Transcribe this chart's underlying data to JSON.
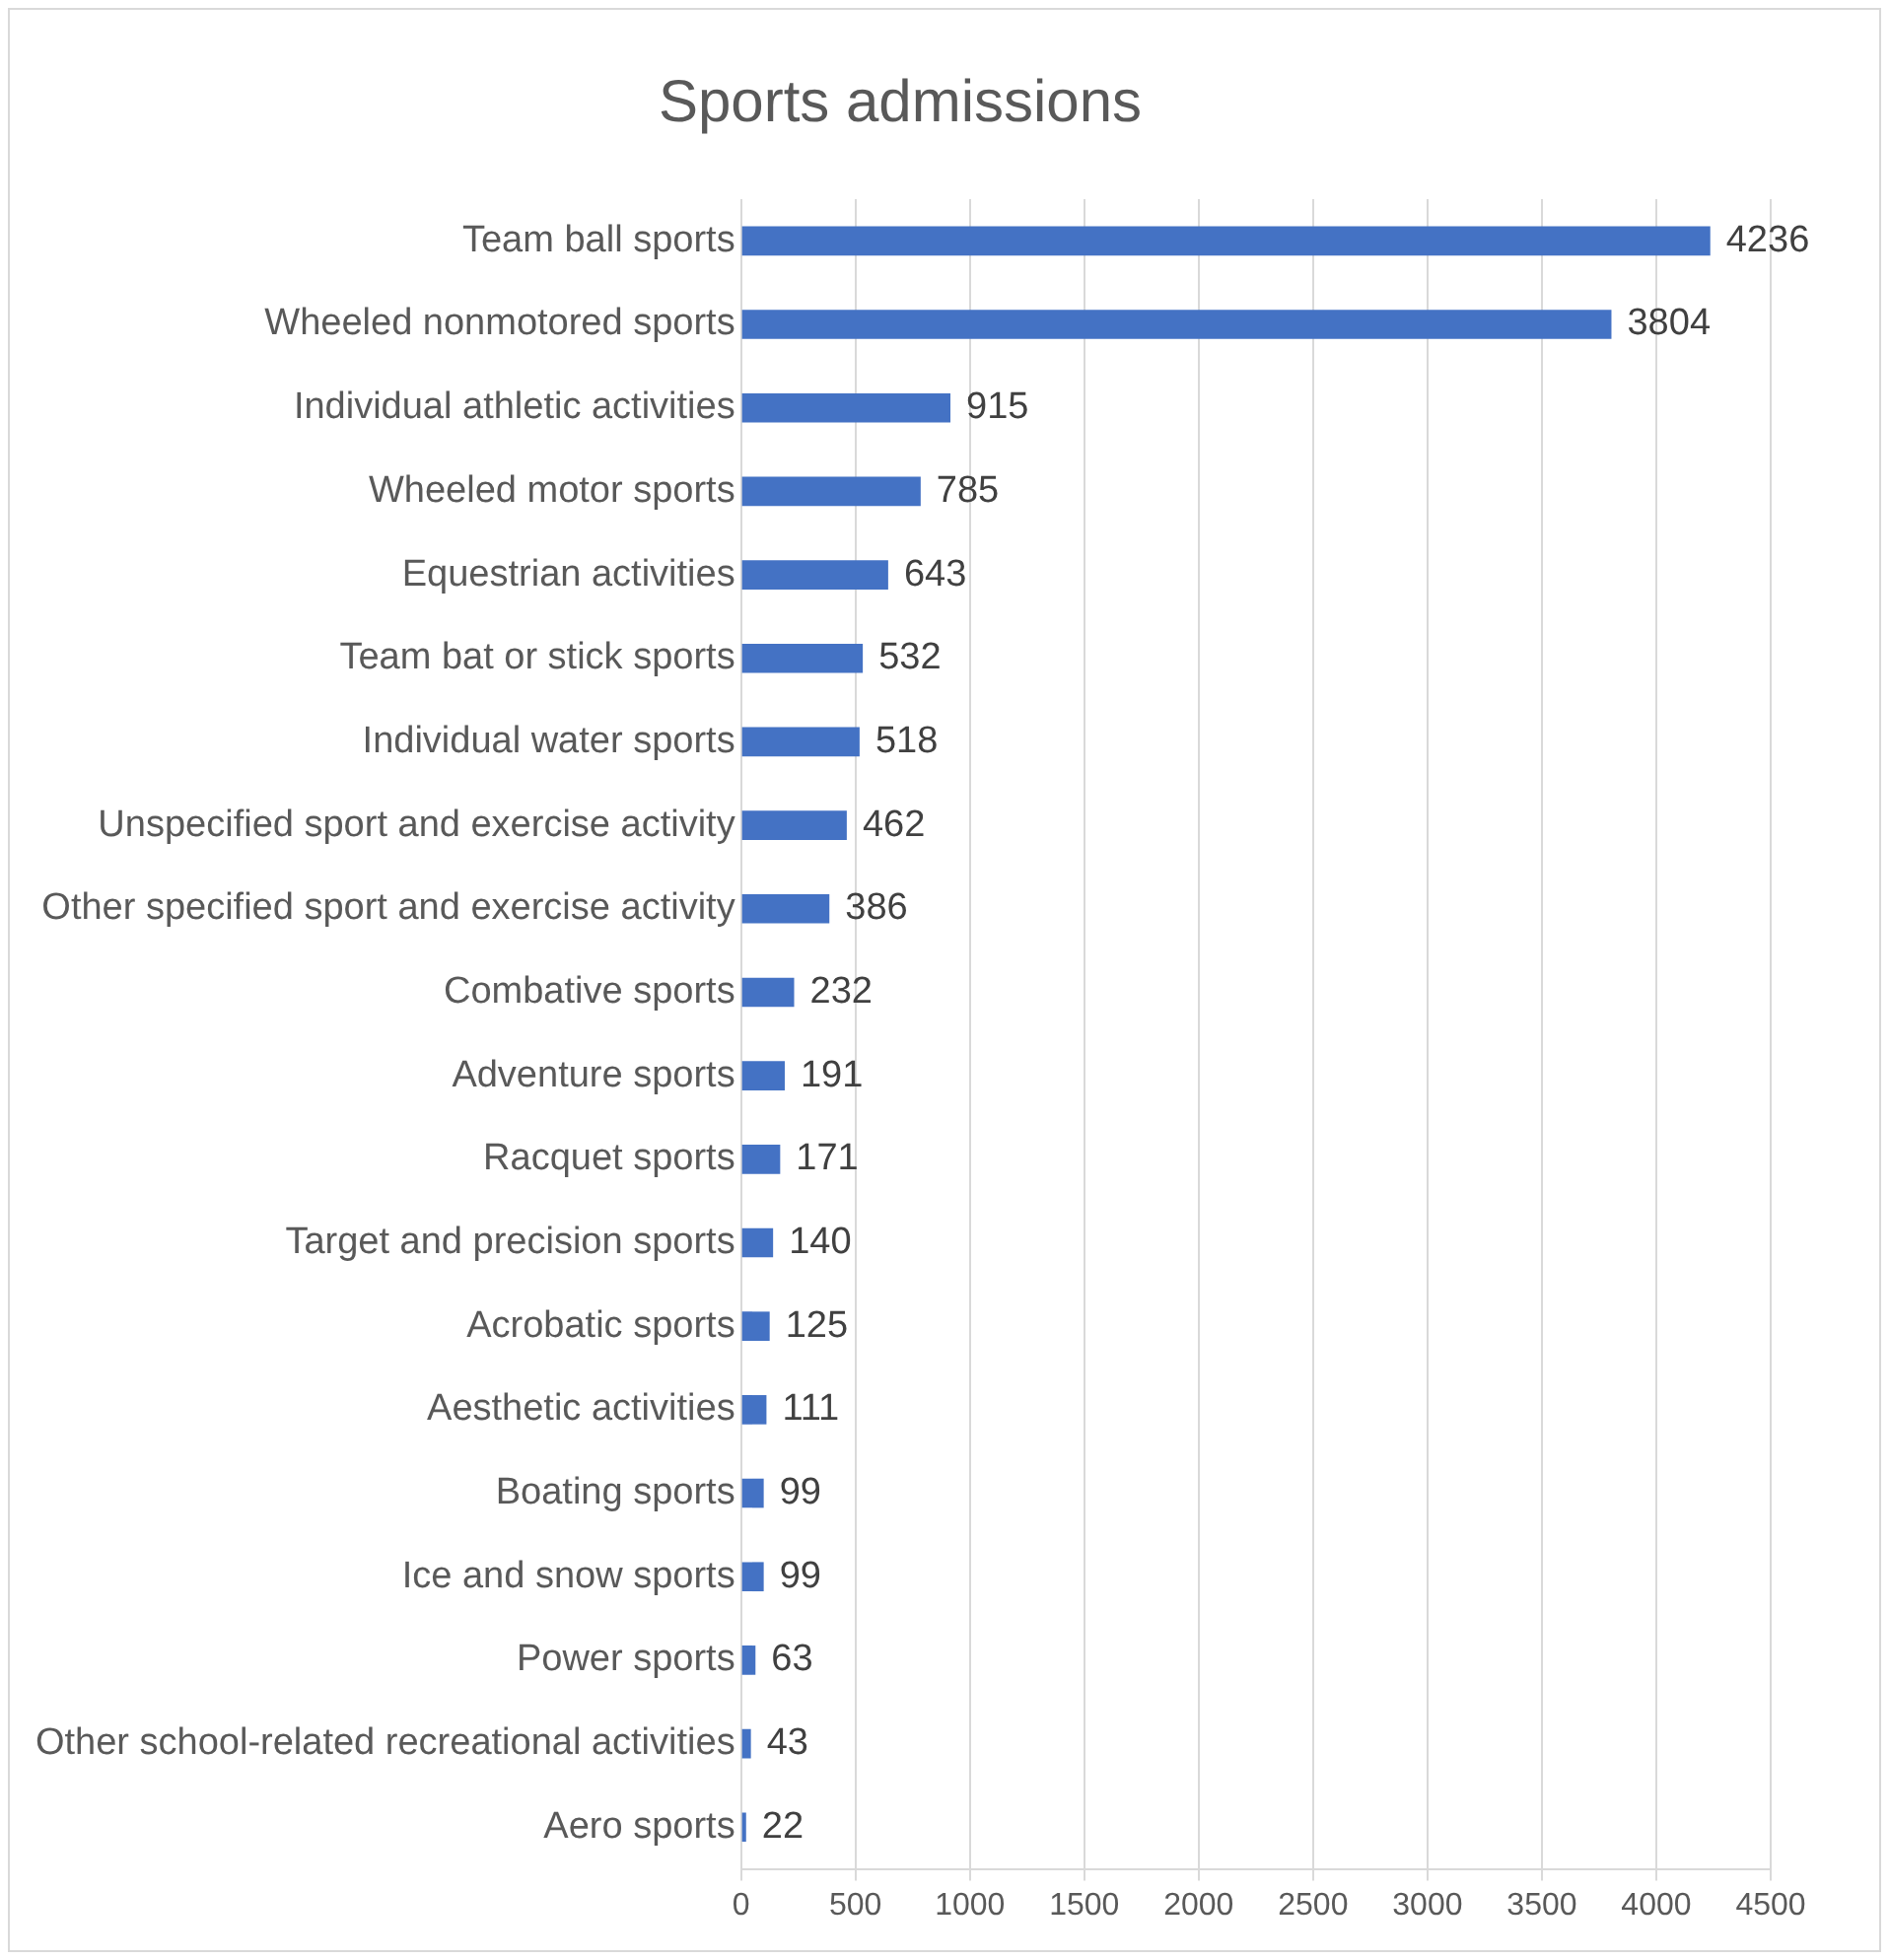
{
  "chart_data": {
    "type": "bar",
    "orientation": "horizontal",
    "title": "Sports admissions",
    "categories": [
      "Team ball sports",
      "Wheeled nonmotored sports",
      "Individual athletic activities",
      "Wheeled motor sports",
      "Equestrian activities",
      "Team bat or stick sports",
      "Individual water sports",
      "Unspecified sport and exercise activity",
      "Other specified sport and exercise activity",
      "Combative sports",
      "Adventure sports",
      "Racquet sports",
      "Target and precision sports",
      "Acrobatic sports",
      "Aesthetic activities",
      "Boating sports",
      "Ice and snow sports",
      "Power sports",
      "Other school-related recreational activities",
      "Aero sports"
    ],
    "values": [
      4236,
      3804,
      915,
      785,
      643,
      532,
      518,
      462,
      386,
      232,
      191,
      171,
      140,
      125,
      111,
      99,
      99,
      63,
      43,
      22
    ],
    "color": "#4472c4",
    "xlim": [
      0,
      4500
    ],
    "xticks": [
      0,
      500,
      1000,
      1500,
      2000,
      2500,
      3000,
      3500,
      4000,
      4500
    ],
    "grid": "x",
    "data_labels": true,
    "legend": false
  }
}
